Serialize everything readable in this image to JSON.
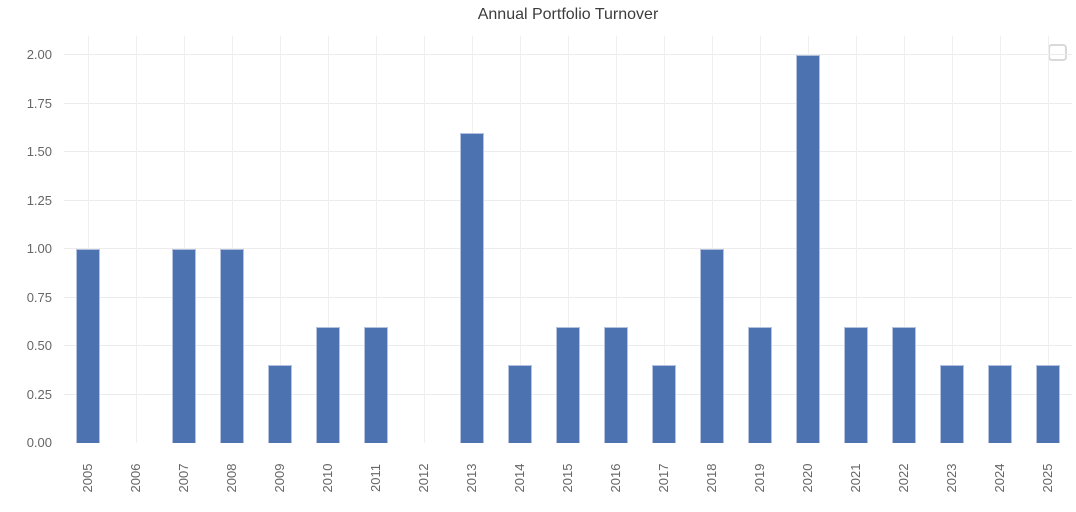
{
  "chart_data": {
    "type": "bar",
    "title": "Annual Portfolio Turnover",
    "xlabel": "",
    "ylabel": "",
    "categories": [
      "2005",
      "2006",
      "2007",
      "2008",
      "2009",
      "2010",
      "2011",
      "2012",
      "2013",
      "2014",
      "2015",
      "2016",
      "2017",
      "2018",
      "2019",
      "2020",
      "2021",
      "2022",
      "2023",
      "2024",
      "2025"
    ],
    "values": [
      1.0,
      0,
      1.0,
      1.0,
      0.4,
      0.6,
      0.6,
      0,
      1.6,
      0.4,
      0.6,
      0.6,
      0.4,
      1.0,
      0.6,
      2.0,
      0.6,
      0.6,
      0.4,
      0.4,
      0.4
    ],
    "y_ticks": [
      0.0,
      0.25,
      0.5,
      0.75,
      1.0,
      1.25,
      1.5,
      1.75,
      2.0
    ],
    "y_tick_labels": [
      "0.00",
      "0.25",
      "0.50",
      "0.75",
      "1.00",
      "1.25",
      "1.50",
      "1.75",
      "2.00"
    ],
    "ylim": [
      0,
      2.1
    ],
    "grid": true,
    "x_tick_rotation_deg": 90,
    "legend": {
      "visible": true,
      "position": "upper-right",
      "entries": []
    },
    "colors": {
      "bar_fill": "#4c72b0",
      "bar_edge": "#b3c0de",
      "gridline": "#ececec",
      "tick_label": "#666666",
      "title": "#3c3c3c",
      "background": "#ffffff",
      "legend_border": "#d9d9d9"
    }
  }
}
